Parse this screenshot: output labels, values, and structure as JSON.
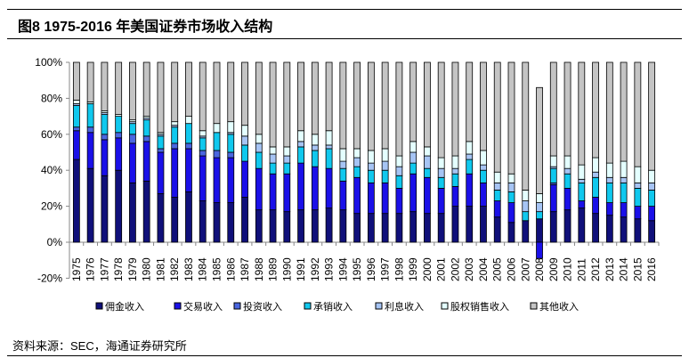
{
  "title": "图8  1975-2016 年美国证券市场收入结构",
  "source": "资料来源：SEC，海通证券研究所",
  "chart_data": {
    "type": "bar",
    "stacked": true,
    "title": "1975-2016 年美国证券市场收入结构",
    "xlabel": "",
    "ylabel": "",
    "ylim": [
      -20,
      100
    ],
    "yticks": [
      "-20%",
      "0%",
      "20%",
      "40%",
      "60%",
      "80%",
      "100%"
    ],
    "ytick_values": [
      -20,
      0,
      20,
      40,
      60,
      80,
      100
    ],
    "legend_position": "bottom",
    "categories": [
      "1975",
      "1976",
      "1977",
      "1978",
      "1979",
      "1980",
      "1981",
      "1982",
      "1983",
      "1984",
      "1985",
      "1986",
      "1987",
      "1988",
      "1989",
      "1990",
      "1991",
      "1992",
      "1993",
      "1994",
      "1995",
      "1996",
      "1997",
      "1998",
      "1999",
      "2000",
      "2001",
      "2002",
      "2003",
      "2004",
      "2005",
      "2006",
      "2007",
      "2008",
      "2009",
      "2010",
      "2011",
      "2012",
      "2013",
      "2014",
      "2015",
      "2016"
    ],
    "series": [
      {
        "name": "佣金收入",
        "color": "#10107a",
        "values": [
          46,
          41,
          37,
          40,
          33,
          34,
          27,
          25,
          28,
          23,
          22,
          22,
          25,
          18,
          18,
          17,
          18,
          18,
          19,
          18,
          16,
          16,
          16,
          16,
          17,
          16,
          16,
          20,
          20,
          20,
          14,
          11,
          12,
          13,
          17,
          18,
          19,
          16,
          15,
          14,
          13,
          12
        ]
      },
      {
        "name": "交易收入",
        "color": "#1a10e8",
        "values": [
          16,
          20,
          20,
          18,
          22,
          22,
          23,
          27,
          24,
          25,
          25,
          25,
          20,
          23,
          20,
          21,
          26,
          24,
          22,
          16,
          20,
          17,
          17,
          14,
          21,
          20,
          14,
          11,
          18,
          13,
          9,
          11,
          0,
          -9,
          15,
          12,
          4,
          9,
          7,
          8,
          7,
          8
        ]
      },
      {
        "name": "投资收入",
        "color": "#4a66e0",
        "values": [
          2,
          3,
          3,
          3,
          5,
          3,
          2,
          3,
          3,
          3,
          4,
          3,
          0,
          0,
          0,
          0,
          0,
          0,
          0,
          0,
          0,
          0,
          0,
          0,
          0,
          0,
          0,
          0,
          0,
          0,
          0,
          0,
          0,
          0,
          1,
          0,
          0,
          0,
          0,
          0,
          0,
          0
        ]
      },
      {
        "name": "承销收入",
        "color": "#10c8ee",
        "values": [
          12,
          13,
          11,
          9,
          6,
          9,
          7,
          9,
          11,
          7,
          10,
          10,
          9,
          9,
          6,
          6,
          9,
          9,
          11,
          7,
          6,
          7,
          7,
          7,
          6,
          5,
          6,
          7,
          8,
          7,
          6,
          6,
          5,
          4,
          8,
          8,
          10,
          11,
          11,
          11,
          10,
          9
        ]
      },
      {
        "name": "利息收入",
        "color": "#a6c4f4",
        "values": [
          1,
          0,
          1,
          0,
          1,
          1,
          1,
          1,
          0,
          1,
          0,
          1,
          5,
          5,
          5,
          4,
          3,
          3,
          2,
          4,
          5,
          4,
          5,
          5,
          6,
          7,
          5,
          3,
          3,
          3,
          4,
          5,
          6,
          5,
          1,
          3,
          2,
          3,
          3,
          3,
          3,
          4
        ]
      },
      {
        "name": "股权销售收入",
        "color": "#e4ffff",
        "values": [
          2,
          1,
          1,
          1,
          1,
          1,
          1,
          2,
          4,
          3,
          5,
          6,
          6,
          5,
          4,
          5,
          6,
          6,
          8,
          7,
          5,
          7,
          7,
          6,
          6,
          5,
          6,
          7,
          7,
          8,
          6,
          5,
          6,
          5,
          6,
          7,
          8,
          8,
          8,
          9,
          9,
          7
        ]
      },
      {
        "name": "其他收入",
        "color": "#c4c4c4",
        "values": [
          21,
          22,
          27,
          29,
          32,
          30,
          39,
          33,
          30,
          38,
          34,
          33,
          35,
          40,
          47,
          47,
          38,
          40,
          38,
          48,
          48,
          49,
          48,
          52,
          44,
          47,
          53,
          52,
          44,
          49,
          61,
          62,
          71,
          59,
          52,
          52,
          57,
          53,
          56,
          55,
          58,
          60
        ]
      }
    ]
  }
}
